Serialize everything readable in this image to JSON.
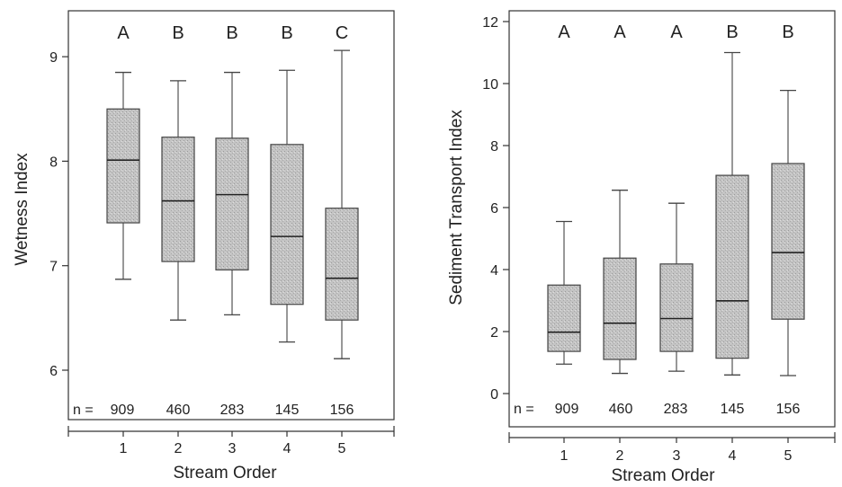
{
  "chart_data": [
    {
      "type": "boxplot",
      "xlabel": "Stream Order",
      "ylabel": "Wetness Index",
      "ylim": [
        5.5,
        9.5
      ],
      "yticks": [
        "6",
        "7",
        "8",
        "9"
      ],
      "categories": [
        "1",
        "2",
        "3",
        "4",
        "5"
      ],
      "letters": [
        "A",
        "B",
        "B",
        "B",
        "C"
      ],
      "n_prefix": "n =",
      "n": [
        "909",
        "460",
        "283",
        "145",
        "156"
      ],
      "boxes": [
        {
          "min": 6.87,
          "q1": 7.41,
          "median": 8.01,
          "q3": 8.5,
          "max": 8.85
        },
        {
          "min": 6.48,
          "q1": 7.04,
          "median": 7.62,
          "q3": 8.23,
          "max": 8.77
        },
        {
          "min": 6.53,
          "q1": 6.96,
          "median": 7.68,
          "q3": 8.22,
          "max": 8.85
        },
        {
          "min": 6.27,
          "q1": 6.63,
          "median": 7.28,
          "q3": 8.16,
          "max": 8.87
        },
        {
          "min": 6.11,
          "q1": 6.48,
          "median": 6.88,
          "q3": 7.55,
          "max": 9.06
        }
      ],
      "box_color": "#bdbdbd",
      "grid": false
    },
    {
      "type": "boxplot",
      "xlabel": "Stream Order",
      "ylabel": "Sediment Transport Index",
      "ylim": [
        -1,
        12.4
      ],
      "yticks": [
        "0",
        "2",
        "4",
        "6",
        "8",
        "10",
        "12"
      ],
      "categories": [
        "1",
        "2",
        "3",
        "4",
        "5"
      ],
      "letters": [
        "A",
        "A",
        "A",
        "B",
        "B"
      ],
      "n_prefix": "n =",
      "n": [
        "909",
        "460",
        "283",
        "145",
        "156"
      ],
      "boxes": [
        {
          "min": 0.95,
          "q1": 1.36,
          "median": 1.98,
          "q3": 3.5,
          "max": 5.55
        },
        {
          "min": 0.65,
          "q1": 1.1,
          "median": 2.27,
          "q3": 4.37,
          "max": 6.56
        },
        {
          "min": 0.72,
          "q1": 1.36,
          "median": 2.42,
          "q3": 4.18,
          "max": 6.14
        },
        {
          "min": 0.6,
          "q1": 1.14,
          "median": 2.99,
          "q3": 7.04,
          "max": 11.0
        },
        {
          "min": 0.58,
          "q1": 2.4,
          "median": 4.55,
          "q3": 7.42,
          "max": 9.78
        }
      ],
      "box_color": "#bdbdbd",
      "grid": false
    }
  ]
}
